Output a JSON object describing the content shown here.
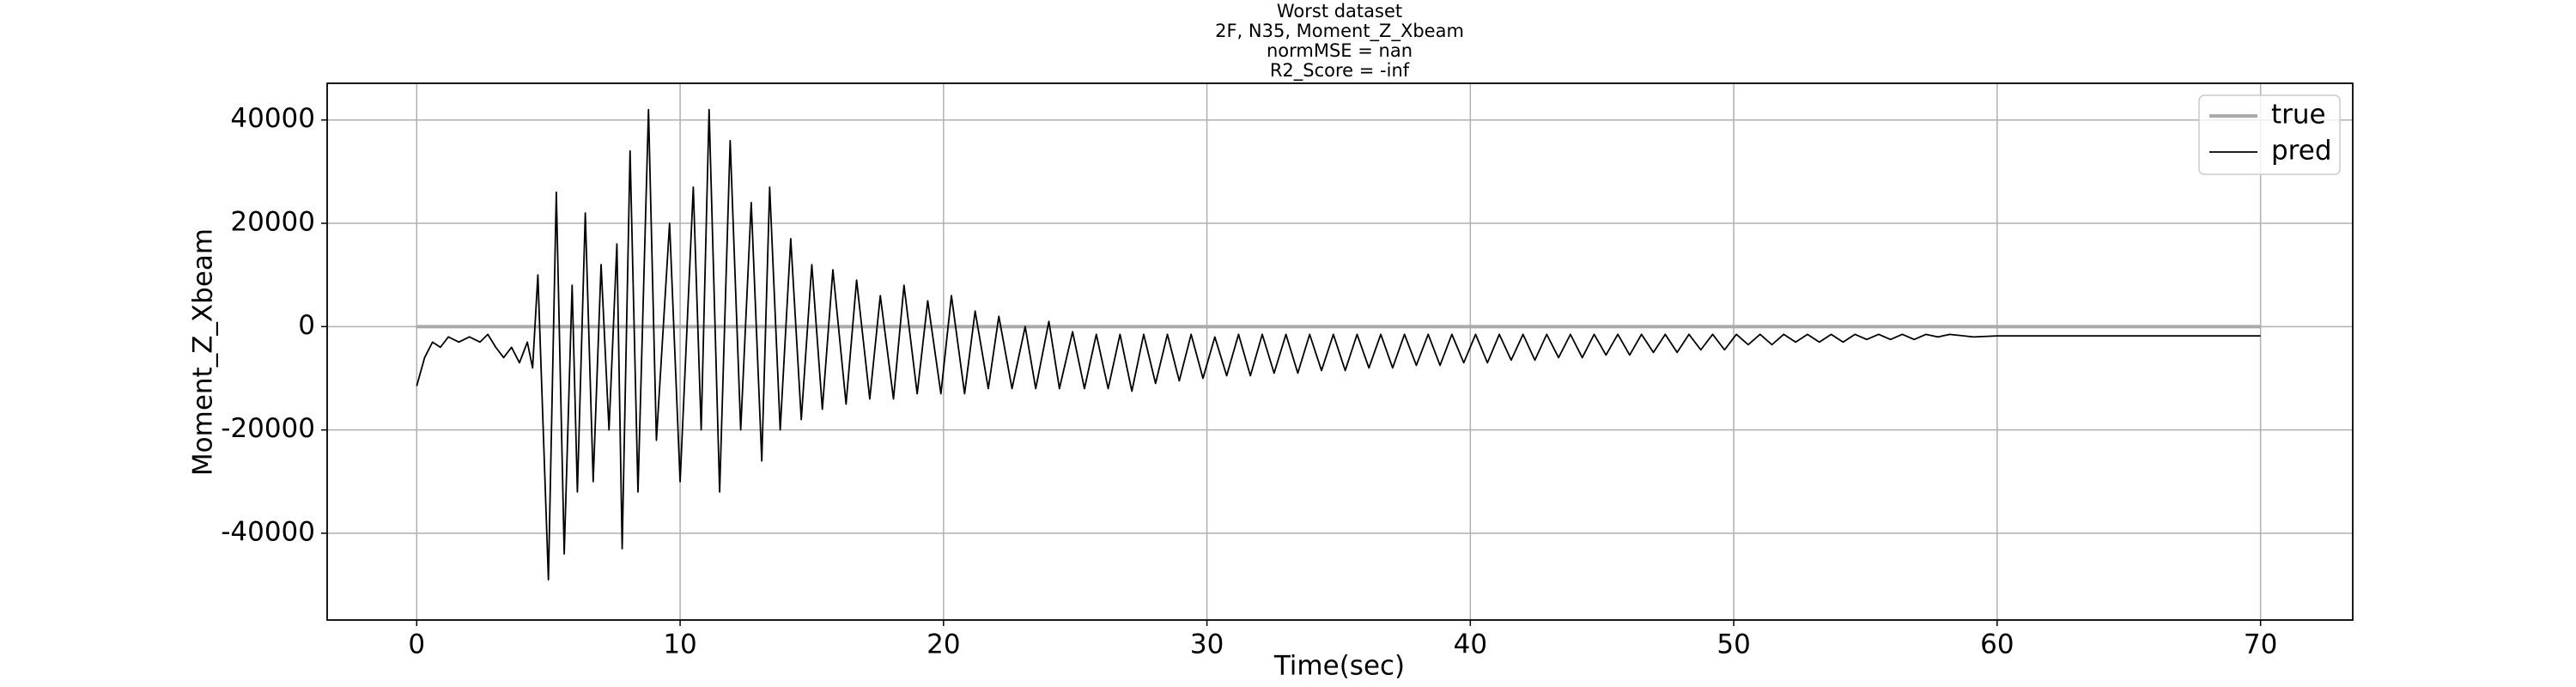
{
  "chart_data": {
    "type": "line",
    "title": [
      "Worst dataset",
      "2F, N35, Moment_Z_Xbeam",
      "normMSE = nan",
      "R2_Score = -inf"
    ],
    "xlabel": "Time(sec)",
    "ylabel": "Moment_Z_Xbeam",
    "xlim": [
      -3.4,
      73.5
    ],
    "ylim": [
      -56800,
      47100
    ],
    "xticks": [
      0,
      10,
      20,
      30,
      40,
      50,
      60,
      70
    ],
    "yticks": [
      -40000,
      -20000,
      0,
      20000,
      40000
    ],
    "grid": true,
    "legend": "upper right",
    "series": [
      {
        "name": "true",
        "color": "#aaaaaa",
        "x": [
          0,
          70
        ],
        "values": [
          0,
          0
        ]
      },
      {
        "name": "pred",
        "color": "#000000",
        "x": [
          0,
          0.3,
          0.6,
          0.9,
          1.2,
          1.6,
          2.0,
          2.4,
          2.7,
          3.0,
          3.3,
          3.6,
          3.9,
          4.2,
          4.4,
          4.6,
          5.0,
          5.3,
          5.6,
          5.9,
          6.1,
          6.4,
          6.7,
          7.0,
          7.3,
          7.6,
          7.8,
          8.1,
          8.4,
          8.8,
          9.1,
          9.6,
          10.0,
          10.5,
          10.8,
          11.1,
          11.5,
          11.9,
          12.3,
          12.7,
          13.1,
          13.4,
          13.8,
          14.2,
          14.6,
          15.0,
          15.4,
          15.8,
          16.3,
          16.7,
          17.2,
          17.6,
          18.1,
          18.5,
          19.0,
          19.4,
          19.9,
          20.3,
          20.8,
          21.2,
          21.7,
          22.1,
          22.6,
          23.1,
          23.5,
          24.0,
          24.4,
          24.9,
          25.35,
          25.8,
          26.25,
          26.7,
          27.15,
          27.6,
          28.05,
          28.5,
          28.95,
          29.4,
          29.85,
          30.3,
          30.75,
          31.2,
          31.65,
          32.1,
          32.55,
          33.0,
          33.45,
          33.9,
          34.35,
          34.8,
          35.25,
          35.7,
          36.15,
          36.6,
          37.05,
          37.5,
          37.95,
          38.4,
          38.85,
          39.3,
          39.75,
          40.2,
          40.65,
          41.1,
          41.55,
          42.0,
          42.45,
          42.9,
          43.35,
          43.8,
          44.25,
          44.7,
          45.15,
          45.6,
          46.05,
          46.5,
          46.95,
          47.4,
          47.85,
          48.3,
          48.75,
          49.2,
          49.65,
          50.1,
          50.55,
          51.0,
          51.45,
          51.9,
          52.35,
          52.8,
          53.25,
          53.7,
          54.15,
          54.6,
          55.05,
          55.5,
          55.95,
          56.4,
          56.85,
          57.3,
          57.75,
          58.2,
          59.1,
          60,
          70
        ],
        "values": [
          -11500,
          -6000,
          -3000,
          -4000,
          -2000,
          -3000,
          -2000,
          -3000,
          -1500,
          -4000,
          -6000,
          -4000,
          -7000,
          -3000,
          -8000,
          10000,
          -49000,
          26000,
          -44000,
          8000,
          -32000,
          22000,
          -30000,
          12000,
          -20000,
          16000,
          -43000,
          34000,
          -32000,
          42000,
          -22000,
          20000,
          -30000,
          27000,
          -20000,
          42000,
          -32000,
          36000,
          -20000,
          24000,
          -26000,
          27000,
          -20000,
          17000,
          -18000,
          12000,
          -16000,
          11000,
          -15000,
          9000,
          -14000,
          6000,
          -14000,
          8000,
          -13000,
          5000,
          -13000,
          6000,
          -13000,
          3000,
          -12000,
          2000,
          -12000,
          0,
          -12000,
          1000,
          -12000,
          -1000,
          -12000,
          -1500,
          -12000,
          -1500,
          -12500,
          -1500,
          -11000,
          -1500,
          -10500,
          -1500,
          -10000,
          -2000,
          -9500,
          -1500,
          -9500,
          -1500,
          -9000,
          -1500,
          -9000,
          -1500,
          -8500,
          -1500,
          -8500,
          -1500,
          -8000,
          -1500,
          -8000,
          -1500,
          -7500,
          -1500,
          -7500,
          -1500,
          -7000,
          -1500,
          -7000,
          -1500,
          -6500,
          -1500,
          -6500,
          -1500,
          -6000,
          -1500,
          -6000,
          -1500,
          -5500,
          -1500,
          -5500,
          -1500,
          -5000,
          -1500,
          -5000,
          -1500,
          -4500,
          -1500,
          -4500,
          -1500,
          -3500,
          -1500,
          -3500,
          -1500,
          -3000,
          -1500,
          -3000,
          -1500,
          -3000,
          -1500,
          -2500,
          -1500,
          -2500,
          -1500,
          -2500,
          -1500,
          -2000,
          -1500,
          -2000,
          -1800,
          -1800
        ]
      }
    ]
  }
}
